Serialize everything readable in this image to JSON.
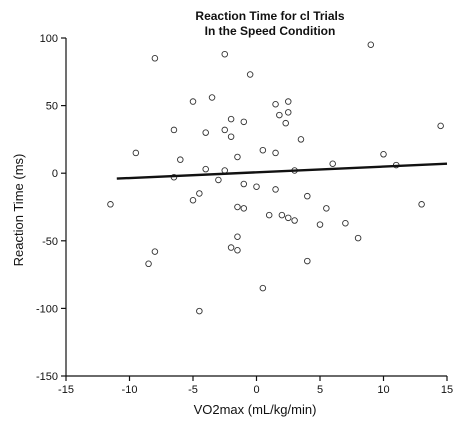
{
  "chart_data": {
    "type": "scatter",
    "title_lines": [
      "Reaction Time for cl Trials",
      "In the Speed Condition"
    ],
    "xlabel": "VO2max (mL/kg/min)",
    "ylabel": "Reaction Time (ms)",
    "xlim": [
      -15,
      15
    ],
    "ylim": [
      -150,
      100
    ],
    "xticks": [
      "-15",
      "-10",
      "-5",
      "0",
      "5",
      "10",
      "15"
    ],
    "yticks": [
      "100",
      "50",
      "0",
      "-50",
      "-100",
      "-150"
    ],
    "grid": false,
    "points": [
      {
        "x": -8,
        "y": 85
      },
      {
        "x": -2.5,
        "y": 88
      },
      {
        "x": 9,
        "y": 95
      },
      {
        "x": -0.5,
        "y": 73
      },
      {
        "x": -5,
        "y": 53
      },
      {
        "x": -3.5,
        "y": 56
      },
      {
        "x": 2.5,
        "y": 53
      },
      {
        "x": 1.5,
        "y": 51
      },
      {
        "x": 2.5,
        "y": 45
      },
      {
        "x": 1.8,
        "y": 43
      },
      {
        "x": 2.3,
        "y": 37
      },
      {
        "x": -2,
        "y": 40
      },
      {
        "x": -1,
        "y": 38
      },
      {
        "x": -6.5,
        "y": 32
      },
      {
        "x": -2.5,
        "y": 32
      },
      {
        "x": -4,
        "y": 30
      },
      {
        "x": 14.5,
        "y": 35
      },
      {
        "x": 3.5,
        "y": 25
      },
      {
        "x": -2,
        "y": 27
      },
      {
        "x": 0.5,
        "y": 17
      },
      {
        "x": 1.5,
        "y": 15
      },
      {
        "x": -9.5,
        "y": 15
      },
      {
        "x": 10,
        "y": 14
      },
      {
        "x": -6,
        "y": 10
      },
      {
        "x": -1.5,
        "y": 12
      },
      {
        "x": 6,
        "y": 7
      },
      {
        "x": 11,
        "y": 6
      },
      {
        "x": -2.5,
        "y": 2
      },
      {
        "x": -4,
        "y": 3
      },
      {
        "x": 3,
        "y": 2
      },
      {
        "x": -6.5,
        "y": -3
      },
      {
        "x": -3,
        "y": -5
      },
      {
        "x": -1,
        "y": -8
      },
      {
        "x": 0,
        "y": -10
      },
      {
        "x": 1.5,
        "y": -12
      },
      {
        "x": -4.5,
        "y": -15
      },
      {
        "x": 4,
        "y": -17
      },
      {
        "x": -5,
        "y": -20
      },
      {
        "x": 13,
        "y": -23
      },
      {
        "x": -11.5,
        "y": -23
      },
      {
        "x": -1.5,
        "y": -25
      },
      {
        "x": -1,
        "y": -26
      },
      {
        "x": 5.5,
        "y": -26
      },
      {
        "x": 1,
        "y": -31
      },
      {
        "x": 2,
        "y": -31
      },
      {
        "x": 2.5,
        "y": -33
      },
      {
        "x": 3,
        "y": -35
      },
      {
        "x": 5,
        "y": -38
      },
      {
        "x": 7,
        "y": -37
      },
      {
        "x": -1.5,
        "y": -47
      },
      {
        "x": 8,
        "y": -48
      },
      {
        "x": -8,
        "y": -58
      },
      {
        "x": -1.5,
        "y": -57
      },
      {
        "x": -2,
        "y": -55
      },
      {
        "x": -8.5,
        "y": -67
      },
      {
        "x": 4,
        "y": -65
      },
      {
        "x": 0.5,
        "y": -85
      },
      {
        "x": -4.5,
        "y": -102
      }
    ],
    "fit_line": {
      "x": [
        -11,
        15
      ],
      "y": [
        -4,
        7
      ]
    }
  }
}
